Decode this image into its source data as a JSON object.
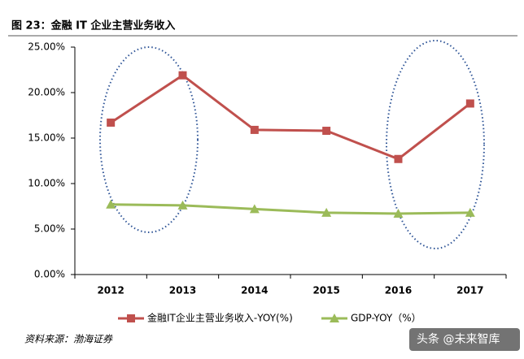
{
  "chart_data": {
    "type": "line",
    "title": "图 23：金融 IT 企业主营业务收入",
    "source": "资料来源：渤海证券",
    "watermark": "头条 @未来智库",
    "categories": [
      "2012",
      "2013",
      "2014",
      "2015",
      "2016",
      "2017"
    ],
    "series": [
      {
        "name": "金融IT企业主营业务收入-YOY(%)",
        "color": "#c0504d",
        "marker": "square",
        "values": [
          16.7,
          21.9,
          15.9,
          15.8,
          12.7,
          18.8
        ]
      },
      {
        "name": "GDP-YOY（%）",
        "color": "#9bbb59",
        "marker": "triangle",
        "values": [
          7.7,
          7.6,
          7.2,
          6.8,
          6.7,
          6.8
        ]
      }
    ],
    "ylim": [
      0,
      25
    ],
    "yticks": [
      {
        "value": 0,
        "label": "0.00%"
      },
      {
        "value": 5,
        "label": "5.00%"
      },
      {
        "value": 10,
        "label": "10.00%"
      },
      {
        "value": 15,
        "label": "15.00%"
      },
      {
        "value": 20,
        "label": "20.00%"
      },
      {
        "value": 25,
        "label": "25.00%"
      }
    ],
    "grid": false,
    "legend": "bottom"
  }
}
